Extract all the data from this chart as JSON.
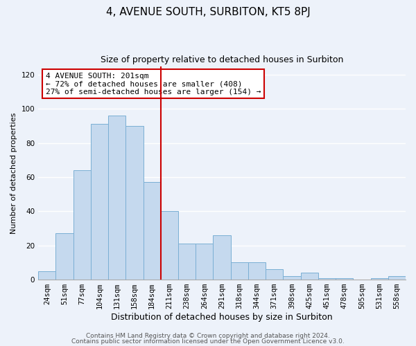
{
  "title": "4, AVENUE SOUTH, SURBITON, KT5 8PJ",
  "subtitle": "Size of property relative to detached houses in Surbiton",
  "xlabel": "Distribution of detached houses by size in Surbiton",
  "ylabel": "Number of detached properties",
  "categories": [
    "24sqm",
    "51sqm",
    "77sqm",
    "104sqm",
    "131sqm",
    "158sqm",
    "184sqm",
    "211sqm",
    "238sqm",
    "264sqm",
    "291sqm",
    "318sqm",
    "344sqm",
    "371sqm",
    "398sqm",
    "425sqm",
    "451sqm",
    "478sqm",
    "505sqm",
    "531sqm",
    "558sqm"
  ],
  "values": [
    5,
    27,
    64,
    91,
    96,
    90,
    57,
    40,
    21,
    21,
    26,
    10,
    10,
    6,
    2,
    4,
    1,
    1,
    0,
    1,
    2
  ],
  "bar_color": "#c5d9ee",
  "bar_edge_color": "#7aafd4",
  "vline_color": "#cc0000",
  "vline_x_index": 7,
  "ylim": [
    0,
    125
  ],
  "yticks": [
    0,
    20,
    40,
    60,
    80,
    100,
    120
  ],
  "annotation_title": "4 AVENUE SOUTH: 201sqm",
  "annotation_line1": "← 72% of detached houses are smaller (408)",
  "annotation_line2": "27% of semi-detached houses are larger (154) →",
  "annotation_box_facecolor": "#ffffff",
  "annotation_box_edgecolor": "#cc0000",
  "footer_line1": "Contains HM Land Registry data © Crown copyright and database right 2024.",
  "footer_line2": "Contains public sector information licensed under the Open Government Licence v3.0.",
  "background_color": "#edf2fa",
  "grid_color": "#ffffff",
  "title_fontsize": 11,
  "subtitle_fontsize": 9,
  "tick_fontsize": 7.5,
  "xlabel_fontsize": 9,
  "ylabel_fontsize": 8,
  "annot_fontsize": 8,
  "footer_fontsize": 6.5
}
